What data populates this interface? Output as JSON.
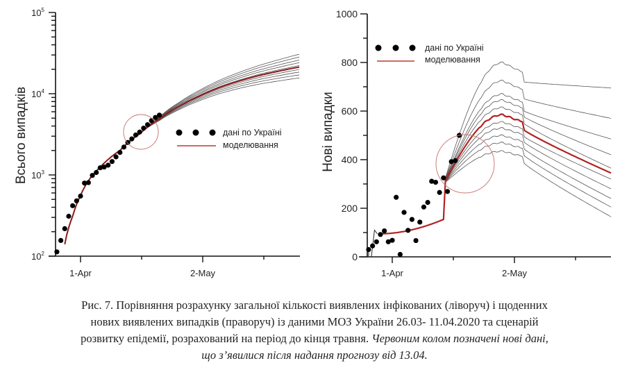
{
  "chart_data": [
    {
      "type": "scatter",
      "title": "",
      "xlabel": "",
      "ylabel": "Всього випадків",
      "yscale": "log",
      "ylim": [
        100,
        100000
      ],
      "y_tick_labels": [
        "10^2",
        "10^3",
        "10^4",
        "10^5"
      ],
      "x_tick_labels": [
        "1-Apr",
        "2-May"
      ],
      "x_day_range": [
        -6,
        57
      ],
      "legend": {
        "position": "center-right",
        "entries": [
          "дані по Україні",
          "моделювання"
        ]
      },
      "highlight_circle": {
        "center_day": 15,
        "center_value": 3500,
        "note": "red circle"
      },
      "series": [
        {
          "name": "дані по Україні",
          "kind": "points",
          "day": [
            -6,
            -5,
            -4,
            -3,
            -2,
            -1,
            0,
            1,
            2,
            3,
            4,
            5,
            6,
            7,
            8,
            9,
            10,
            11,
            12,
            13,
            14,
            15,
            16,
            17,
            18,
            19,
            20
          ],
          "values": [
            113,
            156,
            218,
            310,
            418,
            480,
            549,
            794,
            804,
            987,
            1072,
            1225,
            1251,
            1319,
            1462,
            1668,
            1892,
            2203,
            2511,
            2777,
            3102,
            3372,
            3764,
            4161,
            4662,
            5100,
            5449
          ]
        },
        {
          "name": "моделювання",
          "kind": "line",
          "color": "#b22222",
          "day": [
            -4,
            -2,
            0,
            2,
            5,
            10,
            15,
            20,
            25,
            30,
            35,
            40,
            45,
            50,
            57
          ],
          "values": [
            140,
            310,
            560,
            850,
            1250,
            2000,
            3200,
            4900,
            7000,
            9300,
            11800,
            14200,
            16600,
            18800,
            22000
          ]
        },
        {
          "name": "scenarios",
          "kind": "line-bundle",
          "color": "#555555",
          "day": [
            20,
            25,
            30,
            35,
            40,
            45,
            50,
            57
          ],
          "end_values": [
            16000,
            17500,
            19000,
            20500,
            23000,
            25000,
            27000,
            29500,
            32000
          ]
        }
      ]
    },
    {
      "type": "scatter",
      "title": "",
      "xlabel": "",
      "ylabel": "Нові випадки",
      "ylim": [
        0,
        1000
      ],
      "y_ticks": [
        0,
        200,
        400,
        600,
        800,
        1000
      ],
      "x_tick_labels": [
        "1-Apr",
        "2-May"
      ],
      "x_day_range": [
        -6,
        57
      ],
      "legend": {
        "position": "top-left",
        "entries": [
          "дані по Україні",
          "моделювання"
        ]
      },
      "highlight_circle": {
        "center_day": 18,
        "center_value": 380,
        "note": "red circle"
      },
      "series": [
        {
          "name": "дані по Україні",
          "kind": "points",
          "day": [
            -6,
            -5,
            -4,
            -3,
            -2,
            -1,
            0,
            1,
            2,
            3,
            4,
            5,
            6,
            7,
            8,
            9,
            10,
            11,
            12,
            13,
            14,
            15,
            16,
            17,
            18,
            19
          ],
          "values": [
            30,
            45,
            62,
            92,
            107,
            62,
            68,
            245,
            10,
            183,
            109,
            154,
            67,
            143,
            205,
            224,
            311,
            307,
            265,
            325,
            269,
            392,
            396,
            500,
            10,
            10
          ],
          "valid_count": 24
        },
        {
          "name": "моделювання",
          "kind": "line",
          "color": "#b22222",
          "day": [
            -3,
            0,
            5,
            10,
            15,
            20,
            25,
            30,
            33,
            40,
            50,
            57
          ],
          "values": [
            95,
            110,
            160,
            240,
            330,
            450,
            560,
            580,
            520,
            460,
            390,
            345
          ]
        },
        {
          "name": "scenarios",
          "kind": "line-bundle",
          "color": "#555555",
          "peak_values": [
            435,
            470,
            500,
            530,
            555,
            585,
            615,
            645,
            670,
            725,
            800
          ],
          "end_values": [
            165,
            205,
            240,
            280,
            320,
            345,
            365,
            420,
            485,
            570,
            695
          ]
        }
      ]
    }
  ],
  "caption": {
    "line1": "Рис. 7. Порівняння розрахунку загальної кількості виявлених інфікованих (ліворуч) і щоденних",
    "line2": "нових виявлених випадків (праворуч) із даними МОЗ України 26.03- 11.04.2020 та сценарій",
    "line3": "розвитку епідемії, розрахований на період до кінця травня.",
    "line3_italic": "Червоним колом позначені нові дані,",
    "line4_italic": "що з’явилися після надання прогнозу від 13.04."
  }
}
